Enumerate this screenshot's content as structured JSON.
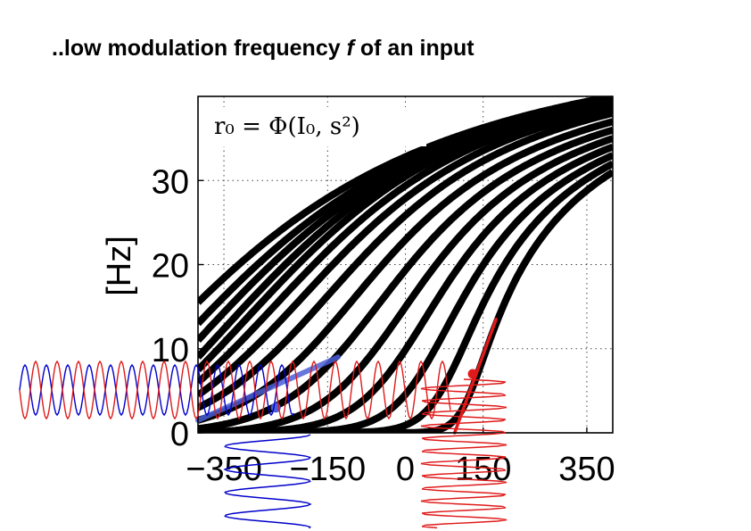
{
  "slide": {
    "title_pre": "..low modulation frequency ",
    "title_var": "f",
    "title_post": " of an input"
  },
  "chart_data": {
    "type": "line",
    "title": "",
    "annotation": "r₀  =  Φ(I₀, s²)",
    "xlabel": "",
    "ylabel": "[Hz]",
    "xlim": [
      -400,
      400
    ],
    "ylim": [
      0,
      40
    ],
    "x_ticks": [
      -350,
      -150,
      0,
      150,
      350
    ],
    "x_tick_labels": [
      "−350",
      "−150",
      "0",
      "150",
      "350"
    ],
    "y_ticks": [
      0,
      10,
      20,
      30
    ],
    "y_tick_labels": [
      "0",
      "10",
      "20",
      "30"
    ],
    "grid": true,
    "grid_style": "dotted",
    "curve_family": {
      "count": 15,
      "noise_levels": "s² increasing (curves shift left and up)",
      "value_at_x_-400": [
        0,
        0,
        0,
        0,
        0,
        0.5,
        1.5,
        3,
        4.5,
        6,
        7.5,
        9,
        11,
        13,
        15.5
      ],
      "value_at_x_400": [
        31,
        32,
        33,
        34,
        35,
        36,
        37,
        38,
        38.7,
        39.3,
        39.8,
        40,
        40,
        40,
        40
      ],
      "color": "#000000"
    },
    "operating_points": [
      {
        "name": "blue",
        "color": "#4a5fd6",
        "x": -250,
        "y": 3,
        "slope_segment": {
          "x0": -400,
          "y0": 1.5,
          "x1": -130,
          "y1": 9
        }
      },
      {
        "name": "red",
        "color": "#e01a1a",
        "x": 130,
        "y": 7,
        "slope_segment": {
          "x0": 95,
          "y0": 0,
          "x1": 175,
          "y1": 13.5
        }
      }
    ],
    "input_signals": [
      {
        "name": "blue sinusoid input",
        "color": "#0000cc"
      },
      {
        "name": "red sinusoid input",
        "color": "#e01a1a"
      }
    ],
    "output_signals": [
      {
        "name": "blue output",
        "color": "#0000cc"
      },
      {
        "name": "red output",
        "color": "#e01a1a"
      }
    ]
  }
}
